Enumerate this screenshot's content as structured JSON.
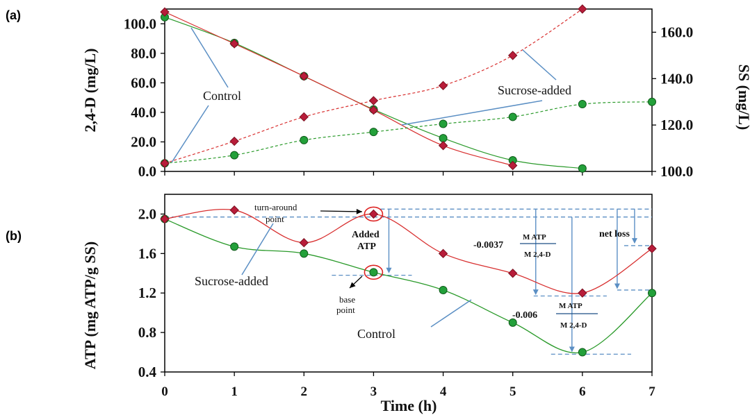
{
  "chart_data": [
    {
      "panel_label": "(a)",
      "type": "line",
      "xlabel": "",
      "ylabel": "2,4-D (mg/L)",
      "y2label": "SS (mg/L)",
      "xlim": [
        0,
        7
      ],
      "ylim": [
        0,
        110
      ],
      "y2lim": [
        100,
        170
      ],
      "yticks": [
        "0.0",
        "20.0",
        "40.0",
        "60.0",
        "80.0",
        "100.0"
      ],
      "y2ticks": [
        "100.0",
        "120.0",
        "140.0",
        "160.0"
      ],
      "series": [
        {
          "axis": "left",
          "color": "#2a9a2a",
          "marker": "circle",
          "dashed": false,
          "x": [
            0,
            1,
            2,
            3,
            4,
            5,
            6
          ],
          "values": [
            104.5,
            87,
            64.5,
            42,
            22.5,
            7.5,
            2
          ]
        },
        {
          "axis": "left",
          "color": "#cc2222",
          "marker": "diamond",
          "dashed": false,
          "x": [
            0,
            1,
            2,
            3,
            4,
            5
          ],
          "values": [
            108,
            86.5,
            64.5,
            41.5,
            17.5,
            4
          ]
        },
        {
          "axis": "right",
          "color": "#2a9a2a",
          "marker": "circle",
          "dashed": true,
          "x": [
            0,
            1,
            2,
            3,
            4,
            5,
            6,
            7
          ],
          "values": [
            103.5,
            107,
            113.5,
            117,
            120.5,
            123.5,
            129,
            130
          ]
        },
        {
          "axis": "right",
          "color": "#cc2222",
          "marker": "diamond",
          "dashed": true,
          "x": [
            0,
            1,
            2,
            3,
            4,
            5,
            6
          ],
          "values": [
            103.5,
            113,
            123.5,
            130.5,
            137,
            150,
            170
          ]
        }
      ],
      "annotations": [
        "Control",
        "Sucrose-added"
      ]
    },
    {
      "panel_label": "(b)",
      "type": "line",
      "xlabel": "Time (h)",
      "ylabel": "ATP (mg ATP/g SS)",
      "xlim": [
        0,
        7
      ],
      "ylim": [
        0.4,
        2.2
      ],
      "xticks": [
        "0",
        "1",
        "2",
        "3",
        "4",
        "5",
        "6",
        "7"
      ],
      "yticks": [
        "0.4",
        "0.8",
        "1.2",
        "1.6",
        "2.0"
      ],
      "series": [
        {
          "color": "#2a9a2a",
          "marker": "circle",
          "x": [
            0,
            1,
            2,
            3,
            4,
            5,
            6,
            7
          ],
          "values": [
            1.95,
            1.67,
            1.6,
            1.41,
            1.23,
            0.9,
            0.6,
            1.2
          ]
        },
        {
          "color": "#cc2222",
          "marker": "diamond",
          "x": [
            0,
            1,
            2,
            3,
            4,
            5,
            6,
            7
          ],
          "values": [
            1.95,
            2.04,
            1.71,
            2.0,
            1.6,
            1.4,
            1.2,
            1.65
          ]
        }
      ],
      "annotations": {
        "turn_around": [
          "turn-around",
          "point"
        ],
        "added_atp": [
          "Added",
          "ATP"
        ],
        "base_point": [
          "base",
          "point"
        ],
        "sucrose": "Sucrose-added",
        "control": "Control",
        "net_loss": "net loss",
        "slope_sucrose": "-0.0037",
        "slope_control": "-0.006",
        "frac_num": "M  ATP",
        "frac_den": "M 2,4-D"
      }
    }
  ]
}
